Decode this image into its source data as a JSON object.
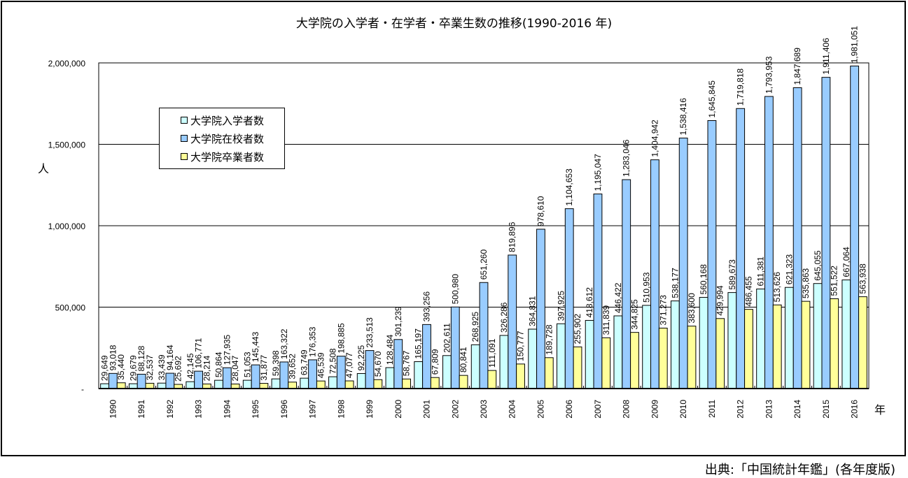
{
  "title": "大学院の入学者・在学者・卒業生数の推移(1990-2016 年)",
  "source": "出典:「中国統計年鑑」(各年度版)",
  "colors": {
    "enrollment": "#CCFFFF",
    "enrolled": "#99CCFF",
    "graduates": "#FFFF99",
    "grid": "#000000"
  },
  "chart_data": {
    "type": "bar",
    "title": "大学院の入学者・在学者・卒業生数の推移(1990-2016 年)",
    "xlabel": "年",
    "ylabel": "人",
    "ylim": [
      0,
      2000000
    ],
    "yticks": [
      0,
      500000,
      1000000,
      1500000,
      2000000
    ],
    "ytick_labels": [
      "-",
      "500,000",
      "1,000,000",
      "1,500,000",
      "2,000,000"
    ],
    "grid": true,
    "legend": "top-left",
    "categories": [
      "1990",
      "1991",
      "1992",
      "1993",
      "1994",
      "1995",
      "1996",
      "1997",
      "1998",
      "1999",
      "2000",
      "2001",
      "2002",
      "2003",
      "2004",
      "2005",
      "2006",
      "2007",
      "2008",
      "2009",
      "2010",
      "2011",
      "2012",
      "2013",
      "2014",
      "2015",
      "2016"
    ],
    "series": [
      {
        "name": "大学院入学者数",
        "values": [
          29649,
          29679,
          33439,
          42145,
          50864,
          51053,
          59398,
          63749,
          72508,
          92225,
          128484,
          165197,
          202611,
          268925,
          326286,
          364831,
          397925,
          418612,
          446422,
          510953,
          538177,
          560168,
          589673,
          611381,
          621323,
          645055,
          667064
        ],
        "labels": [
          "29,649",
          "29,679",
          "33,439",
          "42,145",
          "50,864",
          "51,053",
          "59,398",
          "63,749",
          "72,508",
          "92,225",
          "128,484",
          "165,197",
          "202,611",
          "268,925",
          "326,286",
          "364,831",
          "397,925",
          "418,612",
          "446,422",
          "510,953",
          "538,177",
          "560,168",
          "589,673",
          "611,381",
          "621,323",
          "645,055",
          "667,064"
        ]
      },
      {
        "name": "大学院在校者数",
        "values": [
          93018,
          88128,
          94164,
          106771,
          127935,
          145443,
          163322,
          176353,
          198885,
          233513,
          301239,
          393256,
          500980,
          651260,
          819896,
          978610,
          1104653,
          1195047,
          1283046,
          1404942,
          1538416,
          1645845,
          1719818,
          1793953,
          1847689,
          1911406,
          1981051
        ],
        "labels": [
          "93,018",
          "88,128",
          "94,164",
          "106,771",
          "127,935",
          "145,443",
          "163,322",
          "176,353",
          "198,885",
          "233,513",
          "301,239",
          "393,256",
          "500,980",
          "651,260",
          "819,896",
          "978,610",
          "1,104,653",
          "1,195,047",
          "1,283,046",
          "1,404,942",
          "1,538,416",
          "1,645,845",
          "1,719,818",
          "1,793,953",
          "1,847,689",
          "1,911,406",
          "1,981,051"
        ]
      },
      {
        "name": "大学院卒業者数",
        "values": [
          35440,
          32537,
          25692,
          28214,
          28047,
          31877,
          39652,
          46539,
          47077,
          54670,
          58767,
          67809,
          80841,
          111091,
          150777,
          189728,
          255902,
          311839,
          344825,
          371273,
          383600,
          429994,
          486455,
          513626,
          535863,
          551522,
          563938
        ],
        "labels": [
          "35,440",
          "32,537",
          "25,692",
          "28,214",
          "28,047",
          "31,877",
          "39,652",
          "46,539",
          "47,077",
          "54,670",
          "58,767",
          "67,809",
          "80,841",
          "111,091",
          "150,777",
          "189,728",
          "255,902",
          "311,839",
          "344,825",
          "371,273",
          "383,600",
          "429,994",
          "486,455",
          "513,626",
          "535,863",
          "551,522",
          "563,938"
        ]
      }
    ]
  }
}
